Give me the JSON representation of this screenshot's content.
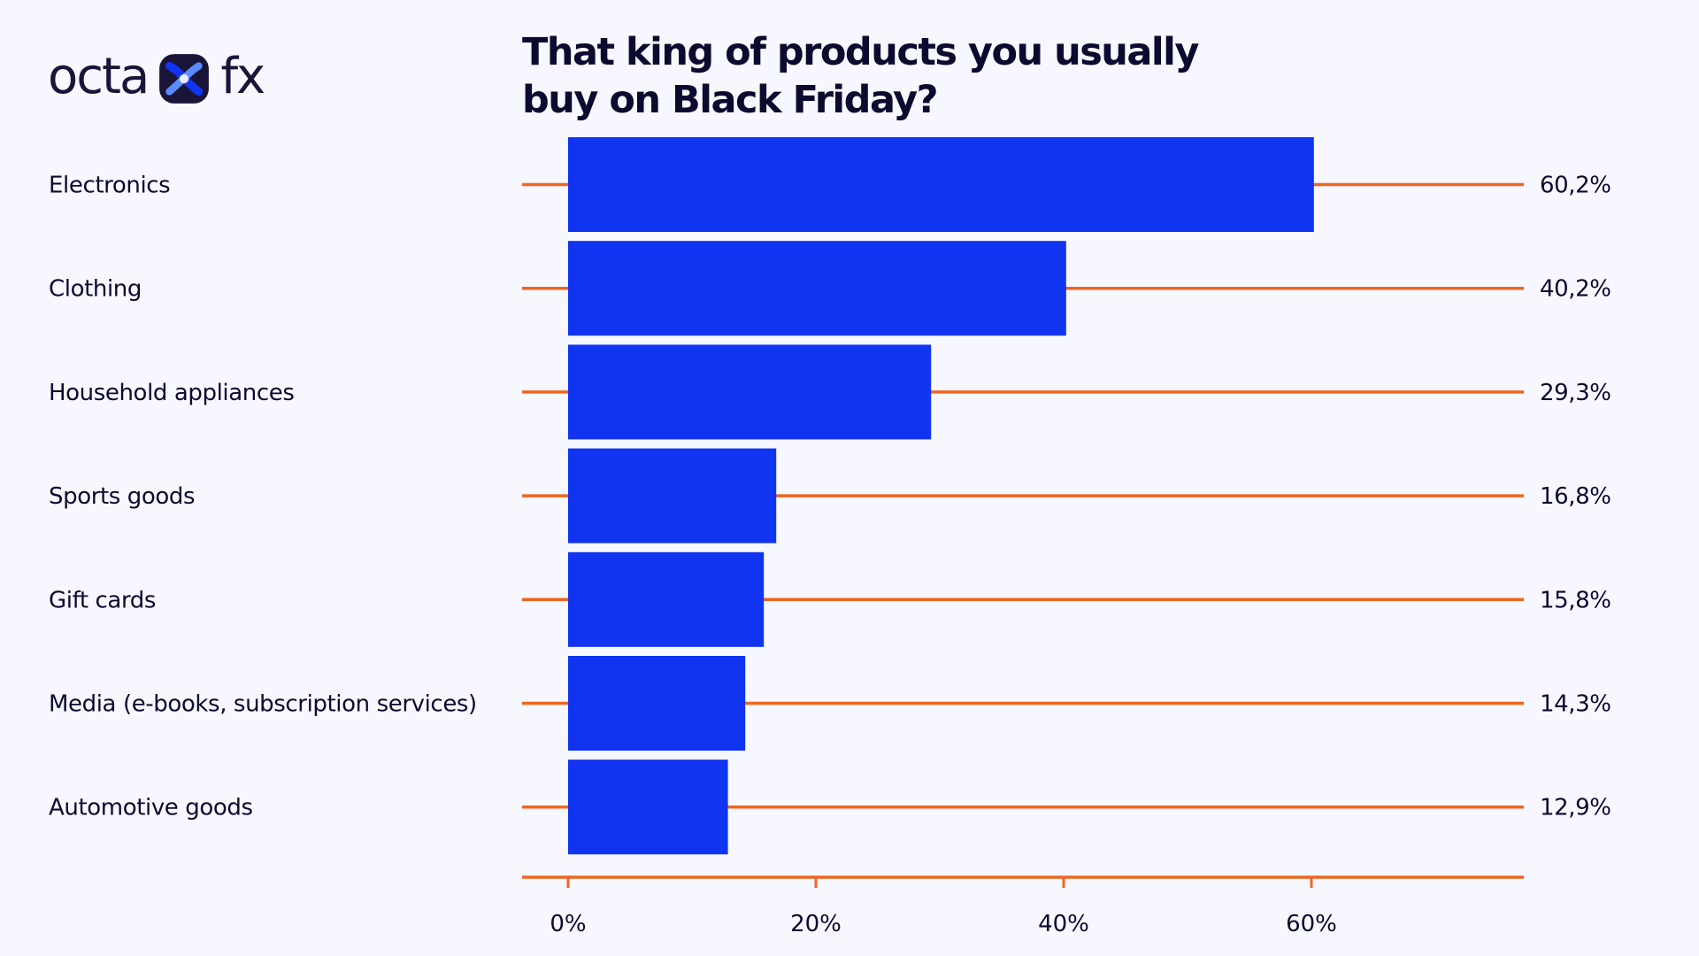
{
  "brand": {
    "text_left": "octa",
    "text_right": "fx",
    "accent_color": "#1034f0",
    "dark_color": "#1a1538"
  },
  "chart_data": {
    "type": "bar",
    "orientation": "horizontal",
    "title_lines": [
      "That king of products you usually",
      "buy on  Black Friday?"
    ],
    "categories": [
      "Electronics",
      "Clothing",
      "Household  appliances",
      "Sports goods",
      "Gift cards",
      "Media (e-books, subscription services)",
      "Automotive goods"
    ],
    "values": [
      60.2,
      40.2,
      29.3,
      16.8,
      15.8,
      14.3,
      12.9
    ],
    "value_labels": [
      "60,2%",
      "40,2%",
      "29,3%",
      "16,8%",
      "15,8%",
      "14,3%",
      "12,9%"
    ],
    "x_ticks": [
      0,
      20,
      40,
      60
    ],
    "x_tick_labels": [
      "0%",
      "20%",
      "40%",
      "60%"
    ],
    "xlim": [
      0,
      78
    ],
    "bar_color": "#1034f0",
    "line_color": "#f0651e",
    "grid": false,
    "legend": "none"
  }
}
